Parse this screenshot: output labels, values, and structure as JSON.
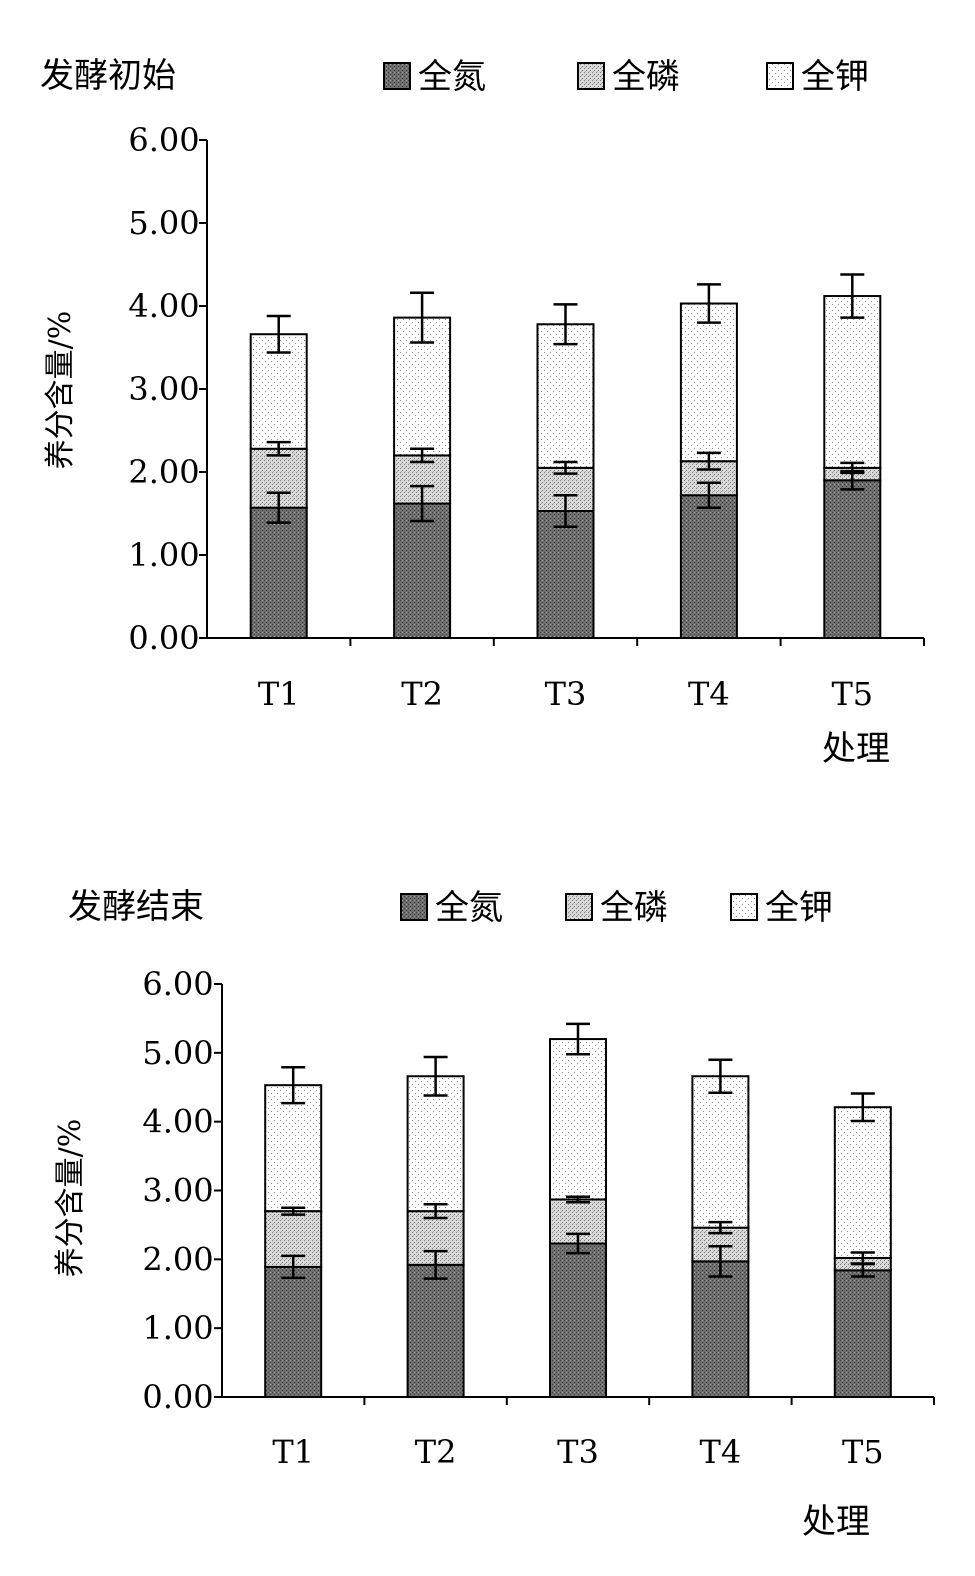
{
  "figure": {
    "legend": [
      "全氮",
      "全磷",
      "全钾"
    ]
  },
  "chart_data": [
    {
      "type": "bar",
      "stacked": true,
      "title": "发酵初始",
      "xlabel": "处理",
      "ylabel": "养分含量/%",
      "ylim": [
        0,
        6
      ],
      "yticks": [
        "0.00",
        "1.00",
        "2.00",
        "3.00",
        "4.00",
        "5.00",
        "6.00"
      ],
      "categories": [
        "T1",
        "T2",
        "T3",
        "T4",
        "T5"
      ],
      "series": [
        {
          "name": "全氮",
          "pattern": "dark-hatch",
          "values": [
            1.57,
            1.62,
            1.53,
            1.72,
            1.9
          ],
          "errors": [
            0.18,
            0.21,
            0.19,
            0.15,
            0.11
          ]
        },
        {
          "name": "全磷",
          "pattern": "light-hatch",
          "values": [
            0.71,
            0.58,
            0.52,
            0.41,
            0.15
          ],
          "errors": [
            0.08,
            0.08,
            0.07,
            0.1,
            0.06
          ]
        },
        {
          "name": "全钾",
          "pattern": "dots",
          "values": [
            1.38,
            1.66,
            1.73,
            1.9,
            2.07
          ],
          "errors": [
            0.22,
            0.3,
            0.24,
            0.23,
            0.26
          ]
        }
      ],
      "totals": [
        3.66,
        3.86,
        3.78,
        4.03,
        4.12
      ],
      "grid": false,
      "legend_position": "top"
    },
    {
      "type": "bar",
      "stacked": true,
      "title": "发酵结束",
      "xlabel": "处理",
      "ylabel": "养分含量/%",
      "ylim": [
        0,
        6
      ],
      "yticks": [
        "0.00",
        "1.00",
        "2.00",
        "3.00",
        "4.00",
        "5.00",
        "6.00"
      ],
      "categories": [
        "T1",
        "T2",
        "T3",
        "T4",
        "T5"
      ],
      "series": [
        {
          "name": "全氮",
          "pattern": "dark-hatch",
          "values": [
            1.89,
            1.92,
            2.23,
            1.97,
            1.84
          ],
          "errors": [
            0.16,
            0.2,
            0.14,
            0.22,
            0.09
          ]
        },
        {
          "name": "全磷",
          "pattern": "light-hatch",
          "values": [
            0.81,
            0.78,
            0.64,
            0.49,
            0.18
          ],
          "errors": [
            0.05,
            0.1,
            0.04,
            0.08,
            0.08
          ]
        },
        {
          "name": "全钾",
          "pattern": "dots",
          "values": [
            1.83,
            1.96,
            2.33,
            2.2,
            2.19
          ],
          "errors": [
            0.26,
            0.28,
            0.22,
            0.24,
            0.2
          ]
        }
      ],
      "totals": [
        4.53,
        4.66,
        5.2,
        4.66,
        4.21
      ],
      "grid": false,
      "legend_position": "top"
    }
  ]
}
